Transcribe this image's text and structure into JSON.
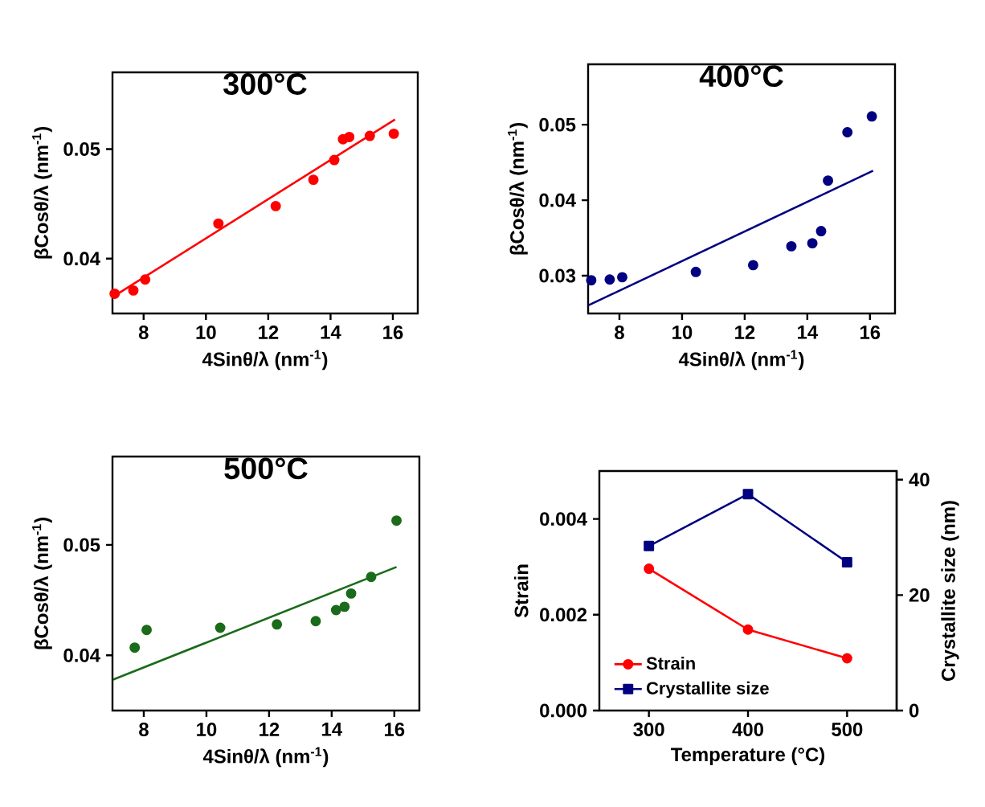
{
  "chart_data": [
    {
      "type": "scatter",
      "title": "300°C",
      "xlabel": "4Sinθ/λ (nm$^{-1}$)",
      "ylabel": "βCosθ/λ (nm$^{-1}$)",
      "xlim": [
        7,
        16.8
      ],
      "ylim": [
        0.035,
        0.057
      ],
      "xticks": [
        8,
        10,
        12,
        14,
        16
      ],
      "yticks": [
        0.04,
        0.05
      ],
      "marker": "circle",
      "x": [
        7.07,
        7.67,
        8.05,
        10.4,
        12.24,
        13.45,
        14.12,
        14.4,
        14.6,
        15.26,
        16.03
      ],
      "series": [
        {
          "color": "#ff0000",
          "values": [
            0.0368,
            0.0371,
            0.0381,
            0.0432,
            0.0448,
            0.0472,
            0.049,
            0.0509,
            0.0511,
            0.0512,
            0.0514
          ]
        },
        {
          "type": "line",
          "marker": "none",
          "color": "#ff0000",
          "x": [
            7.0,
            16.07
          ],
          "values": [
            0.0365,
            0.0527
          ]
        }
      ]
    },
    {
      "type": "scatter",
      "title": "400°C",
      "xlabel": "4Sinθ/λ (nm$^{-1}$)",
      "ylabel": "βCosθ/λ (nm$^{-1}$)",
      "xlim": [
        7,
        16.8
      ],
      "ylim": [
        0.025,
        0.058
      ],
      "xticks": [
        8,
        10,
        12,
        14,
        16
      ],
      "yticks": [
        0.03,
        0.04,
        0.05
      ],
      "marker": "circle",
      "x": [
        7.1,
        7.69,
        8.09,
        10.44,
        12.27,
        13.49,
        14.16,
        14.44,
        14.66,
        15.28,
        16.06
      ],
      "series": [
        {
          "color": "#000080",
          "values": [
            0.0294,
            0.0295,
            0.0298,
            0.0305,
            0.0314,
            0.0339,
            0.0343,
            0.0359,
            0.0426,
            0.049,
            0.0511
          ]
        },
        {
          "type": "line",
          "marker": "none",
          "color": "#000080",
          "x": [
            7.02,
            16.1
          ],
          "values": [
            0.0261,
            0.0439
          ]
        }
      ]
    },
    {
      "type": "scatter",
      "title": "500°C",
      "xlabel": "4Sinθ/λ (nm$^{-1}$)",
      "ylabel": "βCosθ/λ (nm$^{-1}$)",
      "xlim": [
        7,
        16.8
      ],
      "ylim": [
        0.035,
        0.058
      ],
      "xticks": [
        8,
        10,
        12,
        14,
        16
      ],
      "yticks": [
        0.04,
        0.05
      ],
      "marker": "circle",
      "x": [
        7.71,
        8.09,
        10.44,
        12.25,
        13.49,
        14.14,
        14.41,
        14.62,
        15.26,
        16.07
      ],
      "series": [
        {
          "color": "#1a6b1a",
          "values": [
            0.0407,
            0.0423,
            0.0425,
            0.0428,
            0.0431,
            0.0441,
            0.0444,
            0.0456,
            0.0471,
            0.0522
          ]
        },
        {
          "type": "line",
          "marker": "none",
          "color": "#1a6b1a",
          "x": [
            7.02,
            16.07
          ],
          "values": [
            0.0378,
            0.048
          ]
        }
      ]
    },
    {
      "type": "line",
      "xlabel": "Temperature (°C)",
      "ylabel": "Strain",
      "y2label": "Crystallite size (nm)",
      "xlim": [
        250,
        550
      ],
      "xticks": [
        300,
        400,
        500
      ],
      "ylim": [
        0,
        0.005
      ],
      "yticks": [
        {
          "value": 0,
          "label": "0.000"
        },
        0.002,
        0.004
      ],
      "y2lim": [
        0,
        41.5
      ],
      "y2ticks": [
        0,
        20,
        40
      ],
      "legend": "bottom left",
      "x": [
        300,
        400,
        500
      ],
      "series": [
        {
          "name": "Strain",
          "marker": "circle",
          "color": "#ff0000",
          "values": [
            0.00296,
            0.00169,
            0.00109
          ]
        },
        {
          "name": "Crystallite size",
          "marker": "square",
          "axis": "y2",
          "color": "#000080",
          "values": [
            28.5,
            37.5,
            25.7
          ]
        }
      ]
    }
  ]
}
